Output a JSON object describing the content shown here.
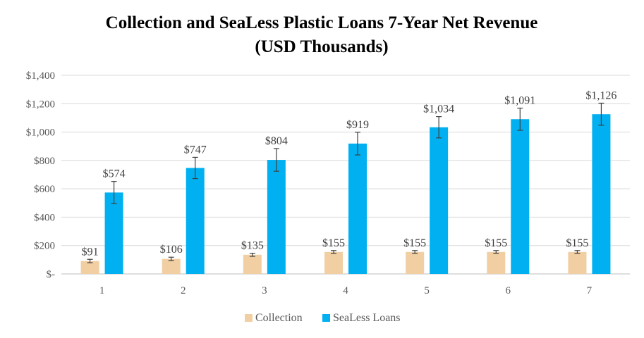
{
  "chart_data": {
    "type": "bar",
    "title_line1": "Collection and SeaLess Plastic Loans 7-Year Net Revenue",
    "title_line2": "(USD Thousands)",
    "categories": [
      "1",
      "2",
      "3",
      "4",
      "5",
      "6",
      "7"
    ],
    "series": [
      {
        "name": "Collection",
        "color": "#F1CFA3",
        "values": [
          91,
          106,
          135,
          155,
          155,
          155,
          155
        ],
        "labels": [
          "$91",
          "$106",
          "$135",
          "$155",
          "$155",
          "$155",
          "$155"
        ],
        "error": [
          12,
          12,
          11,
          10,
          10,
          10,
          10
        ]
      },
      {
        "name": "SeaLess Loans",
        "color": "#00B0F0",
        "values": [
          574,
          747,
          804,
          919,
          1034,
          1091,
          1126
        ],
        "labels": [
          "$574",
          "$747",
          "$804",
          "$919",
          "$1,034",
          "$1,091",
          "$1,126"
        ],
        "error": [
          78,
          75,
          80,
          80,
          75,
          78,
          78
        ]
      }
    ],
    "y_ticks": [
      0,
      200,
      400,
      600,
      800,
      1000,
      1200,
      1400
    ],
    "y_tick_labels": [
      "$-",
      "$200",
      "$400",
      "$600",
      "$800",
      "$1,000",
      "$1,200",
      "$1,400"
    ],
    "ylim": [
      0,
      1400
    ],
    "grid": true,
    "legend_position": "bottom"
  }
}
